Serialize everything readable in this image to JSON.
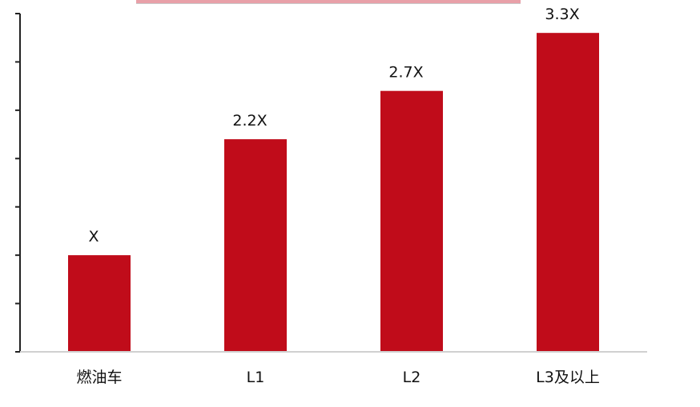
{
  "chart_data": {
    "type": "bar",
    "categories": [
      "燃油车",
      "L1",
      "L2",
      "L3及以上"
    ],
    "values": [
      1.0,
      2.2,
      2.7,
      3.3
    ],
    "data_labels": [
      "X",
      "2.2X",
      "2.7X",
      "3.3X"
    ],
    "title": "",
    "xlabel": "",
    "ylabel": "",
    "ylim": [
      0,
      3.5
    ],
    "grid": false,
    "legend": "none",
    "bar_color": "#c00c1a",
    "axis_color": "#222222"
  }
}
